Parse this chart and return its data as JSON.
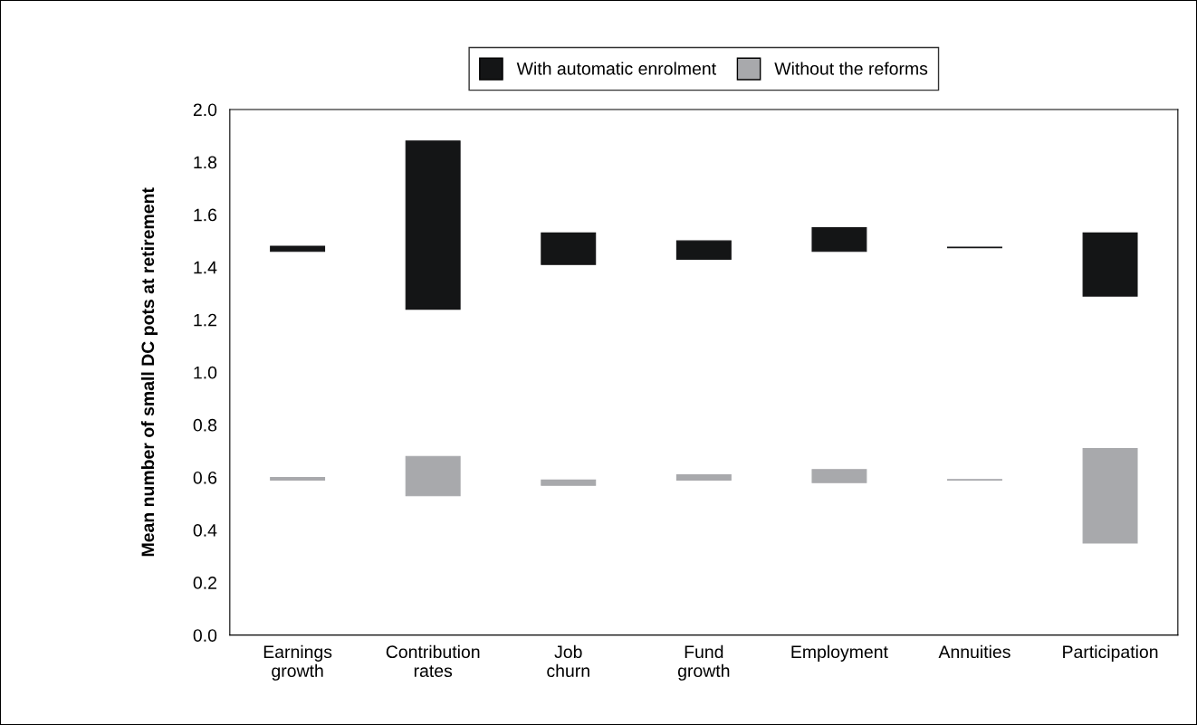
{
  "chart_data": {
    "type": "bar",
    "ylabel": "Mean number of small DC pots at retirement",
    "categories": [
      "Earnings\ngrowth",
      "Contribution\nrates",
      "Job\nchurn",
      "Fund\ngrowth",
      "Employment",
      "Annuities",
      "Participation"
    ],
    "series": [
      {
        "name": "With automatic enrolment",
        "color": "#141516",
        "base": [
          1.46,
          1.24,
          1.41,
          1.43,
          1.46,
          1.474,
          1.29
        ],
        "values": [
          0.02,
          0.64,
          0.12,
          0.07,
          0.09,
          0.002,
          0.24
        ]
      },
      {
        "name": "Without the reforms",
        "color": "#a8a9ac",
        "base": [
          0.59,
          0.53,
          0.57,
          0.59,
          0.58,
          0.59,
          0.35
        ],
        "values": [
          0.01,
          0.15,
          0.02,
          0.02,
          0.05,
          0.002,
          0.36
        ]
      }
    ],
    "ylim": [
      0.0,
      2.0
    ],
    "yticks": [
      {
        "value": 0.0,
        "label": "0.0"
      },
      {
        "value": 0.2,
        "label": "0.2"
      },
      {
        "value": 0.4,
        "label": "0.4"
      },
      {
        "value": 0.6,
        "label": "0.6"
      },
      {
        "value": 0.8,
        "label": "0.8"
      },
      {
        "value": 1.0,
        "label": "1.0"
      },
      {
        "value": 1.2,
        "label": "1.2"
      },
      {
        "value": 1.4,
        "label": "1.4"
      },
      {
        "value": 1.6,
        "label": "1.6"
      },
      {
        "value": 1.8,
        "label": "1.8"
      },
      {
        "value": 2.0,
        "label": "2.0"
      }
    ],
    "grid": false,
    "legend": "top"
  }
}
